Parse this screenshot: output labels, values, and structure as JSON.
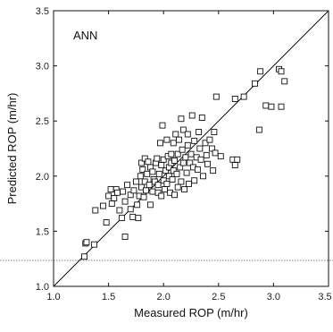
{
  "chart_data": {
    "type": "scatter",
    "title": "",
    "annotation": "ANN",
    "xlabel": "Measured ROP (m/hr)",
    "ylabel": "Predicted ROP (m/hr)",
    "xlim": [
      1.0,
      3.5
    ],
    "ylim": [
      1.0,
      3.5
    ],
    "xticks": [
      "1.0",
      "1.5",
      "2.0",
      "2.5",
      "3.0",
      "3.5"
    ],
    "yticks": [
      "1.0",
      "1.5",
      "2.0",
      "2.5",
      "3.0",
      "3.5"
    ],
    "grid": false,
    "legend": "none",
    "reference_line": {
      "type": "y=x",
      "from": [
        1.0,
        1.0
      ],
      "to": [
        3.5,
        3.5
      ]
    },
    "marker": "open-square",
    "points": [
      [
        1.28,
        1.27
      ],
      [
        1.29,
        1.39
      ],
      [
        1.3,
        1.4
      ],
      [
        1.37,
        1.38
      ],
      [
        1.38,
        1.69
      ],
      [
        1.45,
        1.73
      ],
      [
        1.48,
        1.58
      ],
      [
        1.5,
        1.82
      ],
      [
        1.52,
        1.88
      ],
      [
        1.53,
        1.75
      ],
      [
        1.55,
        1.8
      ],
      [
        1.57,
        1.88
      ],
      [
        1.58,
        1.85
      ],
      [
        1.6,
        1.69
      ],
      [
        1.62,
        1.62
      ],
      [
        1.63,
        1.86
      ],
      [
        1.65,
        1.45
      ],
      [
        1.65,
        1.77
      ],
      [
        1.67,
        1.92
      ],
      [
        1.7,
        1.7
      ],
      [
        1.7,
        1.83
      ],
      [
        1.72,
        1.63
      ],
      [
        1.73,
        1.87
      ],
      [
        1.75,
        1.95
      ],
      [
        1.76,
        1.74
      ],
      [
        1.77,
        1.62
      ],
      [
        1.78,
        1.82
      ],
      [
        1.79,
        2.0
      ],
      [
        1.8,
        2.12
      ],
      [
        1.8,
        1.9
      ],
      [
        1.81,
        2.06
      ],
      [
        1.82,
        1.81
      ],
      [
        1.83,
        2.16
      ],
      [
        1.83,
        1.95
      ],
      [
        1.84,
        1.87
      ],
      [
        1.85,
        2.02
      ],
      [
        1.86,
        2.13
      ],
      [
        1.87,
        1.92
      ],
      [
        1.88,
        1.74
      ],
      [
        1.88,
        2.08
      ],
      [
        1.9,
        2.04
      ],
      [
        1.9,
        1.86
      ],
      [
        1.91,
        1.97
      ],
      [
        1.92,
        1.95
      ],
      [
        1.93,
        2.12
      ],
      [
        1.94,
        2.16
      ],
      [
        1.95,
        1.92
      ],
      [
        1.95,
        1.85
      ],
      [
        1.96,
        2.02
      ],
      [
        1.97,
        2.3
      ],
      [
        1.98,
        1.82
      ],
      [
        1.98,
        2.1
      ],
      [
        1.99,
        2.46
      ],
      [
        2.0,
        2.15
      ],
      [
        2.0,
        1.96
      ],
      [
        2.01,
        1.88
      ],
      [
        2.02,
        2.05
      ],
      [
        2.03,
        2.33
      ],
      [
        2.03,
        1.93
      ],
      [
        2.04,
        2.18
      ],
      [
        2.05,
        2.08
      ],
      [
        2.05,
        2.0
      ],
      [
        2.06,
        1.85
      ],
      [
        2.07,
        2.2
      ],
      [
        2.07,
        2.12
      ],
      [
        2.08,
        1.97
      ],
      [
        2.09,
        2.3
      ],
      [
        2.09,
        2.05
      ],
      [
        2.1,
        1.83
      ],
      [
        2.1,
        2.14
      ],
      [
        2.11,
        2.38
      ],
      [
        2.12,
        2.02
      ],
      [
        2.13,
        2.2
      ],
      [
        2.13,
        1.9
      ],
      [
        2.14,
        2.33
      ],
      [
        2.15,
        2.08
      ],
      [
        2.16,
        2.52
      ],
      [
        2.16,
        1.95
      ],
      [
        2.17,
        2.24
      ],
      [
        2.18,
        2.12
      ],
      [
        2.18,
        2.42
      ],
      [
        2.19,
        1.88
      ],
      [
        2.2,
        2.17
      ],
      [
        2.21,
        2.03
      ],
      [
        2.22,
        2.28
      ],
      [
        2.22,
        2.38
      ],
      [
        2.23,
        1.93
      ],
      [
        2.24,
        2.12
      ],
      [
        2.25,
        2.2
      ],
      [
        2.26,
        2.55
      ],
      [
        2.27,
        2.08
      ],
      [
        2.28,
        2.32
      ],
      [
        2.28,
        1.96
      ],
      [
        2.3,
        2.17
      ],
      [
        2.31,
        2.06
      ],
      [
        2.32,
        2.4
      ],
      [
        2.33,
        2.25
      ],
      [
        2.34,
        2.15
      ],
      [
        2.35,
        2.53
      ],
      [
        2.36,
        2.0
      ],
      [
        2.38,
        2.3
      ],
      [
        2.39,
        2.19
      ],
      [
        2.4,
        2.11
      ],
      [
        2.42,
        2.33
      ],
      [
        2.44,
        2.25
      ],
      [
        2.45,
        2.05
      ],
      [
        2.46,
        2.4
      ],
      [
        2.47,
        2.21
      ],
      [
        2.48,
        2.72
      ],
      [
        2.52,
        2.18
      ],
      [
        2.63,
        2.15
      ],
      [
        2.65,
        2.1
      ],
      [
        2.67,
        2.15
      ],
      [
        2.65,
        2.7
      ],
      [
        2.73,
        2.72
      ],
      [
        2.83,
        2.84
      ],
      [
        2.87,
        2.42
      ],
      [
        2.88,
        2.95
      ],
      [
        2.93,
        2.64
      ],
      [
        2.98,
        2.63
      ],
      [
        3.05,
        2.97
      ],
      [
        3.07,
        2.95
      ],
      [
        3.07,
        2.63
      ],
      [
        3.1,
        2.86
      ]
    ]
  }
}
